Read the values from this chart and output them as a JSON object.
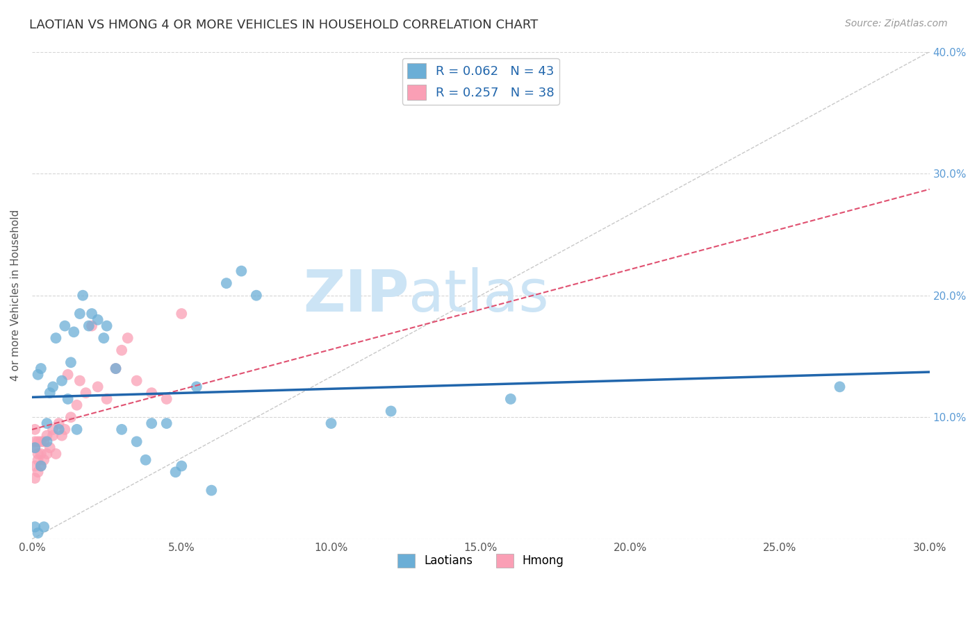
{
  "title": "LAOTIAN VS HMONG 4 OR MORE VEHICLES IN HOUSEHOLD CORRELATION CHART",
  "source_text": "Source: ZipAtlas.com",
  "ylabel": "4 or more Vehicles in Household",
  "xlim": [
    0.0,
    0.3
  ],
  "ylim": [
    0.0,
    0.4
  ],
  "xticks": [
    0.0,
    0.05,
    0.1,
    0.15,
    0.2,
    0.25,
    0.3
  ],
  "yticks": [
    0.0,
    0.1,
    0.2,
    0.3,
    0.4
  ],
  "xtick_labels": [
    "0.0%",
    "5.0%",
    "10.0%",
    "15.0%",
    "20.0%",
    "25.0%",
    "30.0%"
  ],
  "ytick_labels_right": [
    "",
    "10.0%",
    "20.0%",
    "30.0%",
    "40.0%"
  ],
  "laotian_color": "#6baed6",
  "hmong_color": "#fa9fb5",
  "laotian_R": 0.062,
  "laotian_N": 43,
  "hmong_R": 0.257,
  "hmong_N": 38,
  "regression_line_color_laotian": "#2166ac",
  "regression_line_color_hmong": "#e05070",
  "identity_line_color": "#bbbbbb",
  "watermark_zip": "ZIP",
  "watermark_atlas": "atlas",
  "watermark_color": "#cce4f5",
  "legend_label_laotian": "Laotians",
  "legend_label_hmong": "Hmong",
  "laotian_x": [
    0.001,
    0.001,
    0.002,
    0.002,
    0.003,
    0.003,
    0.004,
    0.005,
    0.005,
    0.006,
    0.007,
    0.008,
    0.009,
    0.01,
    0.011,
    0.012,
    0.013,
    0.014,
    0.015,
    0.016,
    0.017,
    0.019,
    0.02,
    0.022,
    0.024,
    0.025,
    0.028,
    0.03,
    0.035,
    0.038,
    0.04,
    0.045,
    0.048,
    0.05,
    0.055,
    0.06,
    0.065,
    0.07,
    0.075,
    0.1,
    0.12,
    0.16,
    0.27
  ],
  "laotian_y": [
    0.01,
    0.075,
    0.005,
    0.135,
    0.06,
    0.14,
    0.01,
    0.08,
    0.095,
    0.12,
    0.125,
    0.165,
    0.09,
    0.13,
    0.175,
    0.115,
    0.145,
    0.17,
    0.09,
    0.185,
    0.2,
    0.175,
    0.185,
    0.18,
    0.165,
    0.175,
    0.14,
    0.09,
    0.08,
    0.065,
    0.095,
    0.095,
    0.055,
    0.06,
    0.125,
    0.04,
    0.21,
    0.22,
    0.2,
    0.095,
    0.105,
    0.115,
    0.125
  ],
  "hmong_x": [
    0.001,
    0.001,
    0.001,
    0.001,
    0.001,
    0.002,
    0.002,
    0.002,
    0.002,
    0.003,
    0.003,
    0.003,
    0.004,
    0.004,
    0.005,
    0.005,
    0.006,
    0.007,
    0.007,
    0.008,
    0.009,
    0.01,
    0.011,
    0.012,
    0.013,
    0.015,
    0.016,
    0.018,
    0.02,
    0.022,
    0.025,
    0.028,
    0.03,
    0.032,
    0.035,
    0.04,
    0.045,
    0.05
  ],
  "hmong_y": [
    0.05,
    0.06,
    0.075,
    0.08,
    0.09,
    0.055,
    0.065,
    0.07,
    0.08,
    0.06,
    0.07,
    0.08,
    0.065,
    0.08,
    0.07,
    0.085,
    0.075,
    0.085,
    0.09,
    0.07,
    0.095,
    0.085,
    0.09,
    0.135,
    0.1,
    0.11,
    0.13,
    0.12,
    0.175,
    0.125,
    0.115,
    0.14,
    0.155,
    0.165,
    0.13,
    0.12,
    0.115,
    0.185
  ]
}
